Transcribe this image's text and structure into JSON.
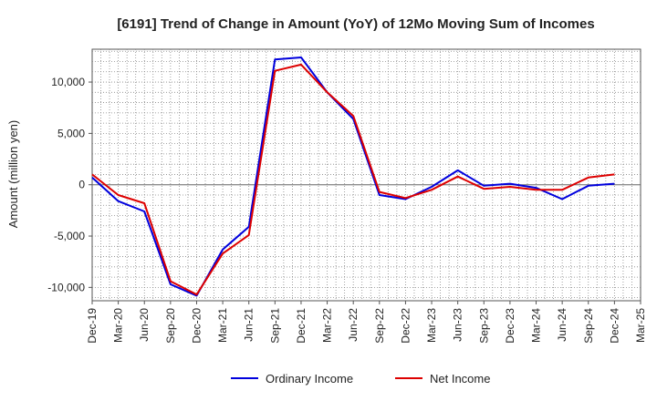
{
  "chart_data": {
    "type": "line",
    "title": "[6191]  Trend of Change in Amount (YoY) of 12Mo Moving Sum of Incomes",
    "xlabel": "",
    "ylabel": "Amount (million yen)",
    "ylim": [
      -11300,
      13200
    ],
    "yticks": [
      {
        "value": 10000,
        "label": "10,000"
      },
      {
        "value": 5000,
        "label": "5,000"
      },
      {
        "value": 0,
        "label": "0"
      },
      {
        "value": -5000,
        "label": "-5,000"
      },
      {
        "value": -10000,
        "label": "-10,000"
      }
    ],
    "categories": [
      "Dec-19",
      "Mar-20",
      "Jun-20",
      "Sep-20",
      "Dec-20",
      "Mar-21",
      "Jun-21",
      "Sep-21",
      "Dec-21",
      "Mar-22",
      "Jun-22",
      "Sep-22",
      "Dec-22",
      "Mar-23",
      "Jun-23",
      "Sep-23",
      "Dec-23",
      "Mar-24",
      "Jun-24",
      "Sep-24",
      "Dec-24",
      "Mar-25"
    ],
    "grid": true,
    "legend_position": "bottom",
    "series": [
      {
        "name": "Ordinary Income",
        "color": "#0000dd",
        "values": [
          700,
          -1600,
          -2600,
          -9700,
          -10800,
          -6300,
          -4100,
          12200,
          12400,
          9000,
          6400,
          -1000,
          -1400,
          -200,
          1400,
          -100,
          100,
          -300,
          -1400,
          -100,
          100,
          null
        ]
      },
      {
        "name": "Net Income",
        "color": "#dd0000",
        "values": [
          1000,
          -1000,
          -1800,
          -9400,
          -10700,
          -6700,
          -4900,
          11100,
          11700,
          9000,
          6700,
          -700,
          -1300,
          -500,
          800,
          -400,
          -200,
          -500,
          -500,
          700,
          1000,
          null
        ]
      }
    ]
  }
}
